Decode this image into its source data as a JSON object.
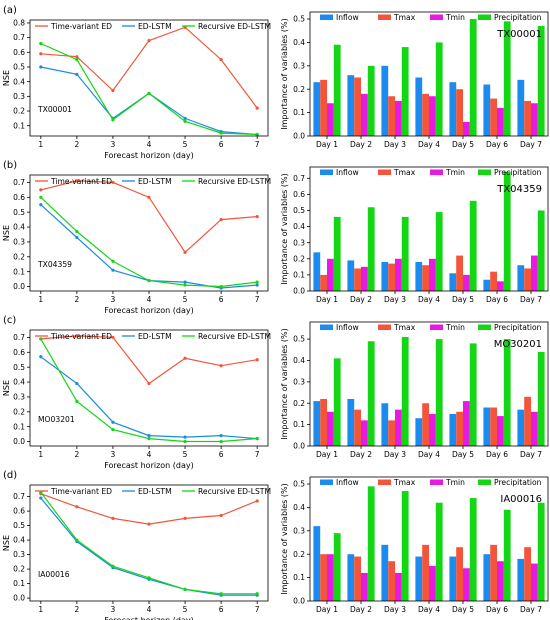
{
  "chart_data": [
    {
      "type": "line",
      "panel_label": "(a)",
      "site": "TX00001",
      "xlabel": "Forecast horizon (day)",
      "ylabel": "NSE",
      "x": [
        1,
        2,
        3,
        4,
        5,
        6,
        7
      ],
      "xlim": [
        0.7,
        7.3
      ],
      "ylim": [
        0.03,
        0.82
      ],
      "yticks": [
        "0.1",
        "0.2",
        "0.3",
        "0.4",
        "0.5",
        "0.6",
        "0.7",
        "0.8"
      ],
      "legend_placement": "top",
      "series": [
        {
          "name": "Time-variant ED",
          "color": "#f4553a",
          "values": [
            0.59,
            0.57,
            0.34,
            0.68,
            0.77,
            0.55,
            0.22
          ]
        },
        {
          "name": "ED-LSTM",
          "color": "#1a8ce0",
          "values": [
            0.5,
            0.45,
            0.15,
            0.32,
            0.15,
            0.06,
            0.04
          ]
        },
        {
          "name": "Recursive ED-LSTM",
          "color": "#14d614",
          "values": [
            0.66,
            0.55,
            0.14,
            0.32,
            0.13,
            0.05,
            0.04
          ]
        }
      ]
    },
    {
      "type": "bar",
      "panel_label": "",
      "site": "TX00001",
      "ylabel": "Importance of variables (%)",
      "categories": [
        "Day 1",
        "Day 2",
        "Day 3",
        "Day 4",
        "Day 5",
        "Day 6",
        "Day 7"
      ],
      "ylim": [
        0,
        0.53
      ],
      "yticks": [
        "0.0",
        "0.1",
        "0.2",
        "0.3",
        "0.4",
        "0.5"
      ],
      "legend_placement": "top",
      "series": [
        {
          "name": "Inflow",
          "color": "#1a8cf0",
          "values": [
            0.23,
            0.26,
            0.3,
            0.25,
            0.23,
            0.22,
            0.24
          ]
        },
        {
          "name": "Tmax",
          "color": "#f4553a",
          "values": [
            0.24,
            0.25,
            0.17,
            0.18,
            0.2,
            0.16,
            0.15
          ]
        },
        {
          "name": "Tmin",
          "color": "#e61ae0",
          "values": [
            0.14,
            0.18,
            0.15,
            0.17,
            0.06,
            0.12,
            0.14
          ]
        },
        {
          "name": "Precipitation",
          "color": "#14d614",
          "values": [
            0.39,
            0.3,
            0.38,
            0.4,
            0.5,
            0.49,
            0.47
          ]
        }
      ]
    },
    {
      "type": "line",
      "panel_label": "(b)",
      "site": "TX04359",
      "xlabel": "Forecast horizon (day)",
      "ylabel": "NSE",
      "x": [
        1,
        2,
        3,
        4,
        5,
        6,
        7
      ],
      "xlim": [
        0.7,
        7.3
      ],
      "ylim": [
        -0.03,
        0.75
      ],
      "yticks": [
        "0.0",
        "0.1",
        "0.2",
        "0.3",
        "0.4",
        "0.5",
        "0.6",
        "0.7"
      ],
      "legend_placement": "top",
      "series": [
        {
          "name": "Time-variant ED",
          "color": "#f4553a",
          "values": [
            0.65,
            0.71,
            0.7,
            0.6,
            0.23,
            0.45,
            0.47
          ]
        },
        {
          "name": "ED-LSTM",
          "color": "#1a8ce0",
          "values": [
            0.55,
            0.33,
            0.11,
            0.04,
            0.03,
            -0.01,
            0.01
          ]
        },
        {
          "name": "Recursive ED-LSTM",
          "color": "#14d614",
          "values": [
            0.6,
            0.37,
            0.17,
            0.04,
            0.01,
            0.0,
            0.03
          ]
        }
      ]
    },
    {
      "type": "bar",
      "panel_label": "",
      "site": "TX04359",
      "ylabel": "Importance of variables (%)",
      "categories": [
        "Day 1",
        "Day 2",
        "Day 3",
        "Day 4",
        "Day 5",
        "Day 6",
        "Day 7"
      ],
      "ylim": [
        0,
        0.77
      ],
      "yticks": [
        "0.0",
        "0.1",
        "0.2",
        "0.3",
        "0.4",
        "0.5",
        "0.6",
        "0.7"
      ],
      "legend_placement": "top",
      "series": [
        {
          "name": "Inflow",
          "color": "#1a8cf0",
          "values": [
            0.24,
            0.19,
            0.18,
            0.18,
            0.11,
            0.07,
            0.16
          ]
        },
        {
          "name": "Tmax",
          "color": "#f4553a",
          "values": [
            0.1,
            0.14,
            0.17,
            0.16,
            0.22,
            0.12,
            0.14
          ]
        },
        {
          "name": "Tmin",
          "color": "#e61ae0",
          "values": [
            0.2,
            0.15,
            0.2,
            0.2,
            0.1,
            0.06,
            0.22
          ]
        },
        {
          "name": "Precipitation",
          "color": "#14d614",
          "values": [
            0.46,
            0.52,
            0.46,
            0.49,
            0.56,
            0.74,
            0.5
          ]
        }
      ]
    },
    {
      "type": "line",
      "panel_label": "(c)",
      "site": "MO03201",
      "xlabel": "Forecast horizon (day)",
      "ylabel": "NSE",
      "x": [
        1,
        2,
        3,
        4,
        5,
        6,
        7
      ],
      "xlim": [
        0.7,
        7.3
      ],
      "ylim": [
        -0.03,
        0.75
      ],
      "yticks": [
        "0.0",
        "0.1",
        "0.2",
        "0.3",
        "0.4",
        "0.5",
        "0.6",
        "0.7"
      ],
      "legend_placement": "top",
      "series": [
        {
          "name": "Time-variant ED",
          "color": "#f4553a",
          "values": [
            0.69,
            0.71,
            0.7,
            0.39,
            0.56,
            0.51,
            0.55
          ]
        },
        {
          "name": "ED-LSTM",
          "color": "#1a8ce0",
          "values": [
            0.57,
            0.39,
            0.13,
            0.04,
            0.03,
            0.04,
            0.02
          ]
        },
        {
          "name": "Recursive ED-LSTM",
          "color": "#14d614",
          "values": [
            0.69,
            0.27,
            0.08,
            0.02,
            0.0,
            0.0,
            0.02
          ]
        }
      ]
    },
    {
      "type": "bar",
      "panel_label": "",
      "site": "MO30201",
      "ylabel": "Importance of variables (%)",
      "categories": [
        "Day 1",
        "Day 2",
        "Day 3",
        "Day 4",
        "Day 5",
        "Day 6",
        "Day 7"
      ],
      "ylim": [
        0,
        0.58
      ],
      "yticks": [
        "0.0",
        "0.1",
        "0.2",
        "0.3",
        "0.4",
        "0.5"
      ],
      "legend_placement": "top",
      "series": [
        {
          "name": "Inflow",
          "color": "#1a8cf0",
          "values": [
            0.21,
            0.22,
            0.2,
            0.13,
            0.15,
            0.18,
            0.17
          ]
        },
        {
          "name": "Tmax",
          "color": "#f4553a",
          "values": [
            0.22,
            0.17,
            0.12,
            0.2,
            0.16,
            0.18,
            0.23
          ]
        },
        {
          "name": "Tmin",
          "color": "#e61ae0",
          "values": [
            0.16,
            0.12,
            0.17,
            0.15,
            0.21,
            0.14,
            0.16
          ]
        },
        {
          "name": "Precipitation",
          "color": "#14d614",
          "values": [
            0.41,
            0.49,
            0.51,
            0.5,
            0.48,
            0.5,
            0.44
          ]
        }
      ]
    },
    {
      "type": "line",
      "panel_label": "(d)",
      "site": "IA00016",
      "xlabel": "Forecast horizon (day)",
      "ylabel": "NSE",
      "x": [
        1,
        2,
        3,
        4,
        5,
        6,
        7
      ],
      "xlim": [
        0.7,
        7.3
      ],
      "ylim": [
        -0.02,
        0.78
      ],
      "yticks": [
        "0.0",
        "0.1",
        "0.2",
        "0.3",
        "0.4",
        "0.5",
        "0.6",
        "0.7"
      ],
      "legend_placement": "top",
      "series": [
        {
          "name": "Time-variant ED",
          "color": "#f4553a",
          "values": [
            0.72,
            0.63,
            0.55,
            0.51,
            0.55,
            0.57,
            0.67
          ]
        },
        {
          "name": "ED-LSTM",
          "color": "#1a8ce0",
          "values": [
            0.69,
            0.39,
            0.21,
            0.13,
            0.06,
            0.02,
            0.02
          ]
        },
        {
          "name": "Recursive ED-LSTM",
          "color": "#14d614",
          "values": [
            0.73,
            0.4,
            0.22,
            0.14,
            0.06,
            0.03,
            0.03
          ]
        }
      ]
    },
    {
      "type": "bar",
      "panel_label": "",
      "site": "IA00016",
      "ylabel": "Importance of variables (%)",
      "categories": [
        "Day 1",
        "Day 2",
        "Day 3",
        "Day 4",
        "Day 5",
        "Day 6",
        "Day 7"
      ],
      "ylim": [
        0,
        0.53
      ],
      "yticks": [
        "0.0",
        "0.1",
        "0.2",
        "0.3",
        "0.4",
        "0.5"
      ],
      "legend_placement": "top",
      "series": [
        {
          "name": "Inflow",
          "color": "#1a8cf0",
          "values": [
            0.32,
            0.2,
            0.24,
            0.19,
            0.19,
            0.2,
            0.18
          ]
        },
        {
          "name": "Tmax",
          "color": "#f4553a",
          "values": [
            0.2,
            0.19,
            0.17,
            0.24,
            0.23,
            0.24,
            0.23
          ]
        },
        {
          "name": "Tmin",
          "color": "#e61ae0",
          "values": [
            0.2,
            0.12,
            0.12,
            0.15,
            0.14,
            0.17,
            0.16
          ]
        },
        {
          "name": "Precipitation",
          "color": "#14d614",
          "values": [
            0.29,
            0.49,
            0.47,
            0.42,
            0.44,
            0.39,
            0.42
          ]
        }
      ]
    }
  ]
}
